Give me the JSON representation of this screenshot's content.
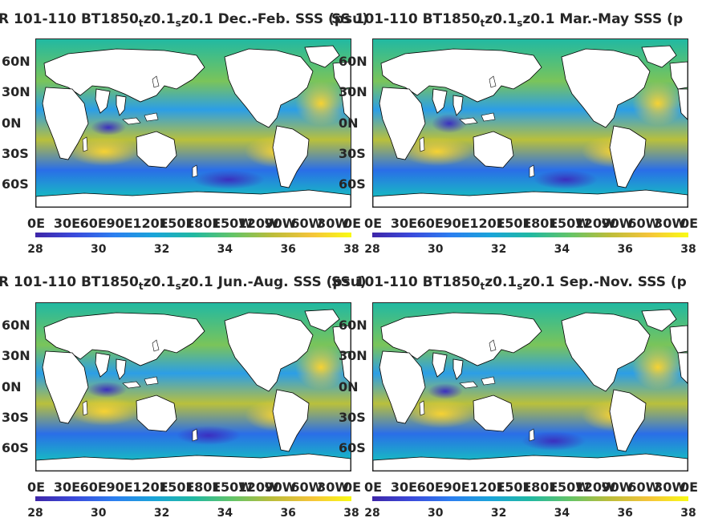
{
  "panels": [
    {
      "title_pre": "R 101-110 BT1850",
      "sub1": "t",
      "mid": "z0.1",
      "sub2": "s",
      "title_post": "z0.1 Dec.-Feb. SSS (psu)",
      "overlap": "SS (psu)"
    },
    {
      "title_pre": "SS 101-110 BT1850",
      "sub1": "t",
      "mid": "z0.1",
      "sub2": "s",
      "title_post": "z0.1 Mar.-May SSS (p",
      "overlap": ""
    },
    {
      "title_pre": "R 101-110 BT1850",
      "sub1": "t",
      "mid": "z0.1",
      "sub2": "s",
      "title_post": "z0.1 Jun.-Aug. SSS (psu)",
      "overlap": "SS (psu)"
    },
    {
      "title_pre": "SS 101-110 BT1850",
      "sub1": "t",
      "mid": "z0.1",
      "sub2": "s",
      "title_post": "z0.1 Sep.-Nov. SSS (p",
      "overlap": ""
    }
  ],
  "lat_labels": [
    "60N",
    "30N",
    "0N",
    "30S",
    "60S"
  ],
  "lon_labels": [
    "0E",
    "30E",
    "60E",
    "90E",
    "120E",
    "150E",
    "180E",
    "150W",
    "120W",
    "90W",
    "60W",
    "30W",
    "0E"
  ],
  "colorbar": {
    "ticks": [
      "28",
      "30",
      "32",
      "34",
      "36",
      "38"
    ],
    "min": 28,
    "max": 38,
    "units": "psu"
  },
  "colors": {
    "ocean_mid": "#21b9a2",
    "land": "#ffffff",
    "low": "#3e26a8",
    "high": "#f9fb14"
  }
}
